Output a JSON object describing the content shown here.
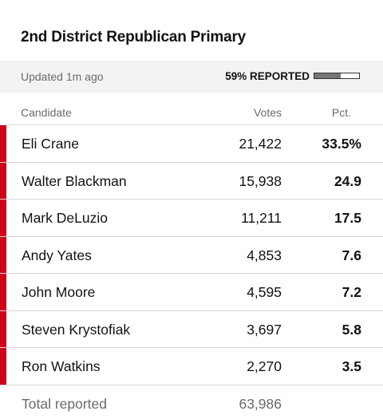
{
  "header": {
    "title": "2nd District Republican Primary"
  },
  "status": {
    "updated": "Updated 1m ago",
    "reported": "59% REPORTED",
    "reported_fraction": 0.59
  },
  "columns": {
    "candidate": "Candidate",
    "votes": "Votes",
    "pct": "Pct."
  },
  "colors": {
    "party_bar": "#d0021b",
    "progress_fill": "#777777"
  },
  "candidates": [
    {
      "name": "Eli Crane",
      "votes": "21,422",
      "pct": "33.5%"
    },
    {
      "name": "Walter Blackman",
      "votes": "15,938",
      "pct": "24.9"
    },
    {
      "name": "Mark DeLuzio",
      "votes": "11,211",
      "pct": "17.5"
    },
    {
      "name": "Andy Yates",
      "votes": "4,853",
      "pct": "7.6"
    },
    {
      "name": "John Moore",
      "votes": "4,595",
      "pct": "7.2"
    },
    {
      "name": "Steven Krystofiak",
      "votes": "3,697",
      "pct": "5.8"
    },
    {
      "name": "Ron Watkins",
      "votes": "2,270",
      "pct": "3.5"
    }
  ],
  "total": {
    "label": "Total reported",
    "votes": "63,986"
  }
}
